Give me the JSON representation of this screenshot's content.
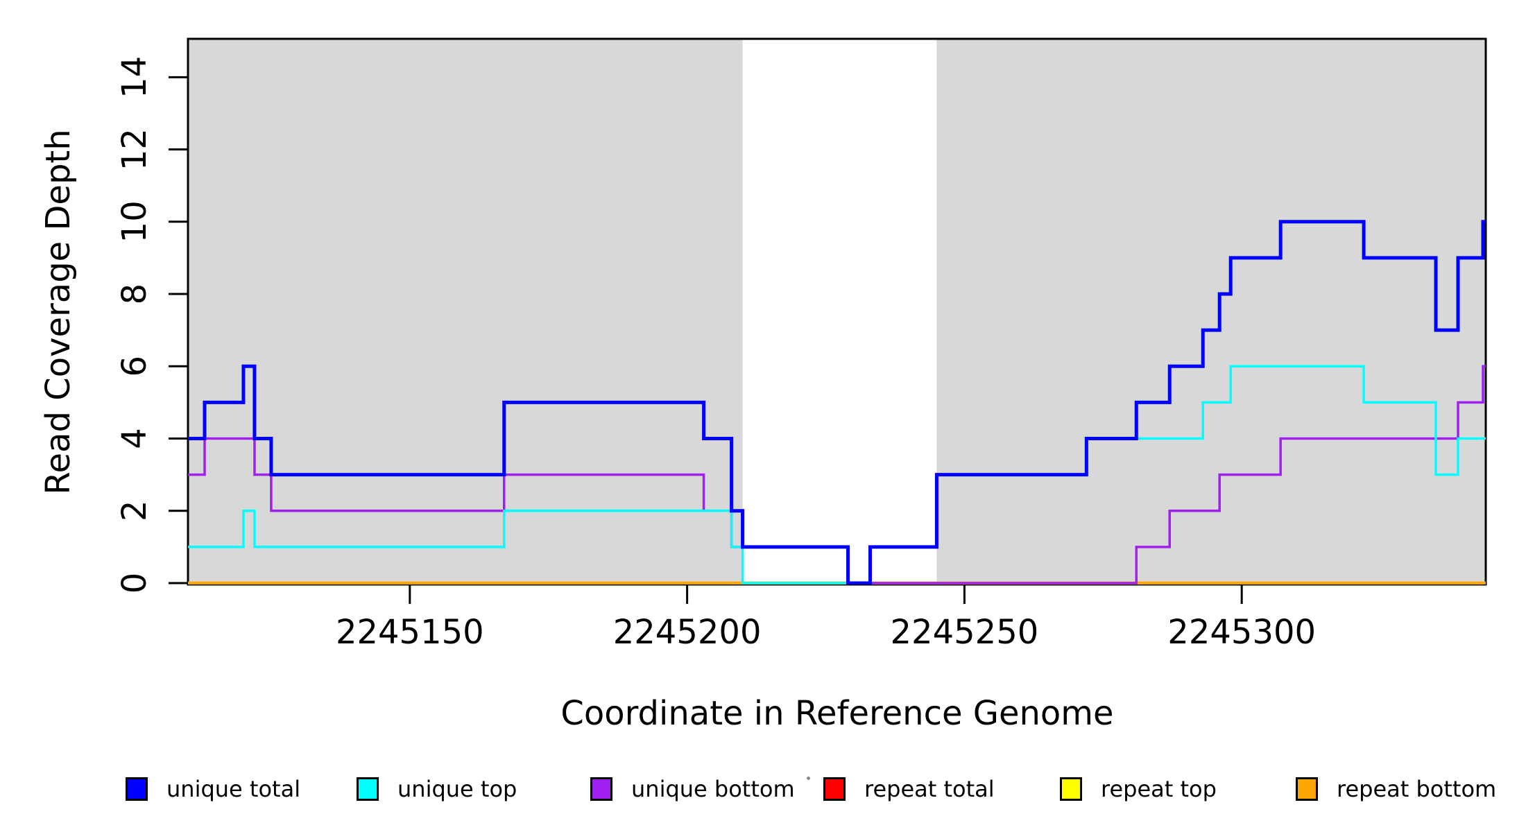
{
  "figure": {
    "background_color": "#ffffff",
    "shaded_region_color": "#d8d8d8",
    "axis_color": "#000000"
  },
  "chart_data": {
    "type": "line",
    "subtype": "step-coverage",
    "title": "",
    "xlabel": "Coordinate in Reference Genome",
    "ylabel": "Read Coverage Depth",
    "xlim": [
      2245110,
      2245344
    ],
    "ylim": [
      0,
      15
    ],
    "x_ticks": [
      2245150,
      2245200,
      2245250,
      2245300
    ],
    "y_ticks": [
      0,
      2,
      4,
      6,
      8,
      10,
      12,
      14
    ],
    "grid": false,
    "legend_position": "bottom",
    "shaded_x_regions": [
      [
        2245110,
        2245210
      ],
      [
        2245245,
        2245344
      ]
    ],
    "series": [
      {
        "name": "unique total",
        "color": "#0000ff",
        "lwd": 5,
        "steps": [
          [
            2245110,
            4
          ],
          [
            2245113,
            5
          ],
          [
            2245120,
            6
          ],
          [
            2245122,
            4
          ],
          [
            2245125,
            3
          ],
          [
            2245167,
            5
          ],
          [
            2245203,
            4
          ],
          [
            2245208,
            2
          ],
          [
            2245210,
            1
          ],
          [
            2245229,
            0
          ],
          [
            2245233,
            1
          ],
          [
            2245245,
            3
          ],
          [
            2245272,
            4
          ],
          [
            2245281,
            5
          ],
          [
            2245287,
            6
          ],
          [
            2245293,
            7
          ],
          [
            2245296,
            8
          ],
          [
            2245298,
            9
          ],
          [
            2245307,
            10
          ],
          [
            2245322,
            9
          ],
          [
            2245335,
            7
          ],
          [
            2245339,
            9
          ],
          [
            2245343.5,
            10
          ]
        ]
      },
      {
        "name": "unique top",
        "color": "#00ffff",
        "lwd": 3.5,
        "steps": [
          [
            2245110,
            1
          ],
          [
            2245120,
            2
          ],
          [
            2245122,
            1
          ],
          [
            2245167,
            2
          ],
          [
            2245208,
            1
          ],
          [
            2245210,
            0
          ],
          [
            2245233,
            1
          ],
          [
            2245245,
            3
          ],
          [
            2245272,
            4
          ],
          [
            2245293,
            5
          ],
          [
            2245298,
            6
          ],
          [
            2245322,
            5
          ],
          [
            2245335,
            3
          ],
          [
            2245339,
            4
          ]
        ]
      },
      {
        "name": "unique bottom",
        "color": "#a020f0",
        "lwd": 3.5,
        "steps": [
          [
            2245110,
            3
          ],
          [
            2245113,
            4
          ],
          [
            2245122,
            3
          ],
          [
            2245125,
            2
          ],
          [
            2245167,
            3
          ],
          [
            2245203,
            2
          ],
          [
            2245208,
            1
          ],
          [
            2245229,
            0
          ],
          [
            2245281,
            1
          ],
          [
            2245287,
            2
          ],
          [
            2245296,
            3
          ],
          [
            2245307,
            4
          ],
          [
            2245339,
            5
          ],
          [
            2245343.5,
            6
          ]
        ]
      },
      {
        "name": "repeat total",
        "color": "#ff0000",
        "lwd": 3,
        "steps": [
          [
            2245110,
            0
          ]
        ]
      },
      {
        "name": "repeat top",
        "color": "#ffff00",
        "lwd": 3,
        "steps": [
          [
            2245110,
            0
          ]
        ]
      },
      {
        "name": "repeat bottom",
        "color": "#ffa500",
        "lwd": 4.5,
        "steps": [
          [
            2245110,
            0
          ]
        ]
      }
    ],
    "draw_order": [
      "repeat total",
      "repeat top",
      "repeat bottom",
      "unique bottom",
      "unique top",
      "unique total"
    ]
  },
  "legend": {
    "items": [
      {
        "label": "unique total",
        "color": "#0000ff"
      },
      {
        "label": "unique top",
        "color": "#00ffff"
      },
      {
        "label": "unique bottom",
        "color": "#a020f0"
      },
      {
        "label": "repeat total",
        "color": "#ff0000"
      },
      {
        "label": "repeat top",
        "color": "#ffff00"
      },
      {
        "label": "repeat bottom",
        "color": "#ffa500"
      }
    ]
  }
}
